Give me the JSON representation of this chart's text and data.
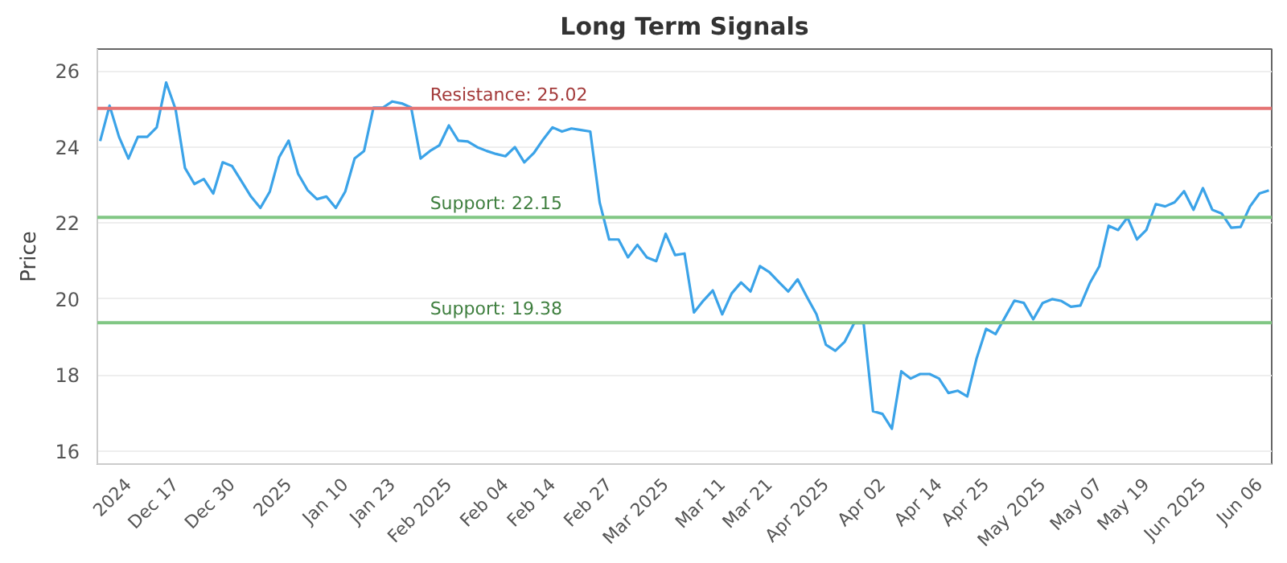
{
  "chart_data": {
    "type": "line",
    "title": "Long Term Signals",
    "ylabel": "Price",
    "categories": [
      null,
      null,
      null,
      "2024",
      null,
      null,
      null,
      null,
      "Dec 17",
      null,
      null,
      null,
      null,
      null,
      "Dec 30",
      null,
      null,
      null,
      null,
      null,
      "2025",
      null,
      null,
      null,
      null,
      null,
      "Jan 10",
      null,
      null,
      null,
      null,
      "Jan 23",
      null,
      null,
      null,
      null,
      null,
      "Feb 2025",
      null,
      null,
      null,
      null,
      null,
      "Feb 04",
      null,
      null,
      null,
      null,
      "Feb 14",
      null,
      null,
      null,
      null,
      null,
      "Feb 27",
      null,
      null,
      null,
      null,
      null,
      "Mar 2025",
      null,
      null,
      null,
      null,
      null,
      "Mar 11",
      null,
      null,
      null,
      null,
      "Mar 21",
      null,
      null,
      null,
      null,
      null,
      "Apr 2025",
      null,
      null,
      null,
      null,
      null,
      "Apr 02",
      null,
      null,
      null,
      null,
      null,
      "Apr 14",
      null,
      null,
      null,
      null,
      "Apr 25",
      null,
      null,
      null,
      null,
      null,
      "May 2025",
      null,
      null,
      null,
      null,
      null,
      "May 07",
      null,
      null,
      null,
      null,
      "May 19",
      null,
      null,
      null,
      null,
      null,
      "Jun 2025",
      null,
      null,
      null,
      null,
      null,
      "Jun 06",
      null
    ],
    "series": [
      {
        "color": "#3ba3e8",
        "values": [
          24.16,
          25.09,
          24.27,
          23.7,
          24.27,
          24.27,
          24.52,
          25.7,
          25.0,
          23.45,
          23.03,
          23.16,
          22.78,
          23.6,
          23.5,
          23.1,
          22.7,
          22.4,
          22.83,
          23.74,
          24.17,
          23.3,
          22.87,
          22.63,
          22.7,
          22.4,
          22.83,
          23.7,
          23.9,
          25.04,
          25.04,
          25.2,
          25.15,
          25.04,
          23.7,
          23.9,
          24.05,
          24.57,
          24.17,
          24.15,
          24.0,
          23.9,
          23.82,
          23.76,
          24.0,
          23.6,
          23.84,
          24.2,
          24.52,
          24.41,
          24.49,
          24.45,
          24.41,
          22.54,
          21.57,
          21.57,
          21.1,
          21.43,
          21.1,
          21.0,
          21.72,
          21.16,
          21.2,
          19.65,
          19.96,
          20.23,
          19.6,
          20.15,
          20.44,
          20.2,
          20.87,
          20.71,
          20.45,
          20.2,
          20.52,
          20.05,
          19.6,
          18.8,
          18.64,
          18.88,
          19.37,
          19.37,
          17.05,
          16.98,
          16.59,
          18.1,
          17.91,
          18.03,
          18.03,
          17.91,
          17.53,
          17.59,
          17.44,
          18.45,
          19.22,
          19.08,
          19.52,
          19.96,
          19.9,
          19.47,
          19.9,
          20.0,
          19.95,
          19.8,
          19.83,
          20.42,
          20.86,
          21.93,
          21.82,
          22.15,
          21.57,
          21.82,
          22.5,
          22.44,
          22.55,
          22.84,
          22.35,
          22.92,
          22.35,
          22.25,
          21.88,
          21.9,
          22.44,
          22.78,
          22.86
        ]
      }
    ],
    "ylim": [
      15.66,
      26.58
    ],
    "yticks": [
      16,
      18,
      20,
      22,
      24,
      26
    ],
    "grid": "y",
    "ref_lines": [
      {
        "axis": "y",
        "value": 25.02,
        "label": "Resistance: 25.02",
        "color": "#e57373"
      },
      {
        "axis": "y",
        "value": 22.15,
        "label": "Support: 22.15",
        "color": "#81c784"
      },
      {
        "axis": "y",
        "value": 19.38,
        "label": "Support: 19.38",
        "color": "#81c784"
      }
    ]
  }
}
